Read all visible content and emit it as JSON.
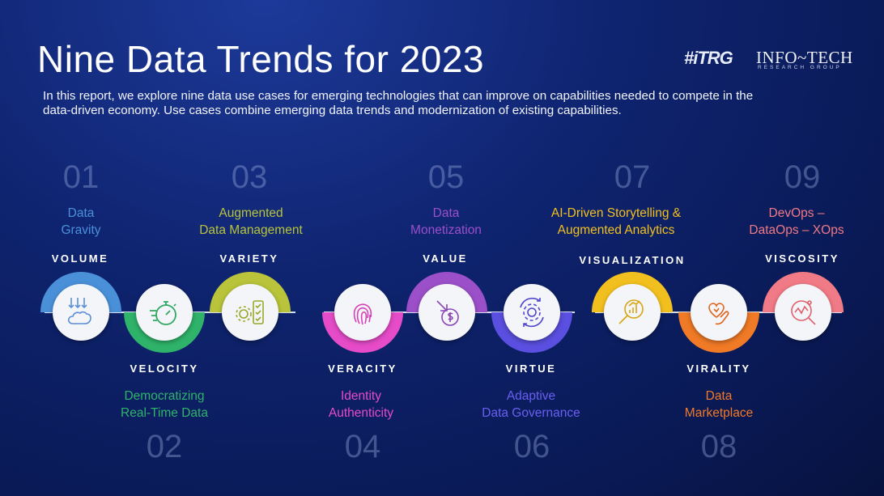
{
  "header": {
    "title": "Nine Data Trends for 2023",
    "subtitle": "In this report, we explore nine data use cases for emerging technologies that can improve on capabilities needed to compete in the data-driven economy. Use cases combine emerging data trends and modernization of existing capabilities.",
    "logo_itrg": "#iTRG",
    "logo_infotech": "INFO~TECH",
    "logo_infotech_sub": "RESEARCH GROUP"
  },
  "trends": [
    {
      "number": "01",
      "name_line1": "Data",
      "name_line2": "Gravity",
      "v": "VOLUME",
      "color": "#4a90d9",
      "icon": "cloud-arrows-icon"
    },
    {
      "number": "02",
      "name_line1": "Democratizing",
      "name_line2": "Real-Time Data",
      "v": "VELOCITY",
      "color": "#2fb36a",
      "icon": "stopwatch-icon"
    },
    {
      "number": "03",
      "name_line1": "Augmented",
      "name_line2": "Data Management",
      "v": "VARIETY",
      "color": "#b9c43a",
      "icon": "gear-checklist-icon"
    },
    {
      "number": "04",
      "name_line1": "Identity",
      "name_line2": "Authenticity",
      "v": "VERACITY",
      "color": "#e64bc8",
      "icon": "fingerprint-icon"
    },
    {
      "number": "05",
      "name_line1": "Data",
      "name_line2": "Monetization",
      "v": "VALUE",
      "color": "#9b4fc8",
      "icon": "money-arrow-icon"
    },
    {
      "number": "06",
      "name_line1": "Adaptive",
      "name_line2": "Data Governance",
      "v": "VIRTUE",
      "color": "#5a4fe0",
      "icon": "gear-cycle-icon"
    },
    {
      "number": "07",
      "name_line1": "AI-Driven Storytelling &",
      "name_line2": "Augmented Analytics",
      "v": "VISUALIZATION",
      "color": "#f2c01e",
      "icon": "magnifier-chart-icon"
    },
    {
      "number": "08",
      "name_line1": "Data",
      "name_line2": "Marketplace",
      "v": "VIRALITY",
      "color": "#f07a26",
      "icon": "heart-hand-icon"
    },
    {
      "number": "09",
      "name_line1": "DevOps –",
      "name_line2": "DataOps – XOps",
      "v": "VISCOSITY",
      "color": "#f07a85",
      "icon": "magnifier-graph-icon"
    }
  ]
}
